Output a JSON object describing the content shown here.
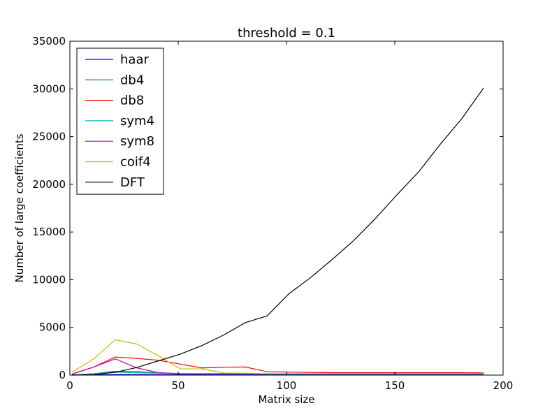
{
  "chart_data": {
    "type": "line",
    "title": "threshold = 0.1",
    "xlabel": "Matrix size",
    "ylabel": "Number of large coefficients",
    "xlim": [
      0,
      200
    ],
    "ylim": [
      0,
      35000
    ],
    "xticks": [
      0,
      50,
      100,
      150,
      200
    ],
    "yticks": [
      0,
      5000,
      10000,
      15000,
      20000,
      25000,
      30000,
      35000
    ],
    "grid": false,
    "legend_position": "top-left",
    "x": [
      1,
      11,
      21,
      31,
      41,
      51,
      61,
      71,
      81,
      91,
      101,
      111,
      121,
      131,
      141,
      151,
      161,
      171,
      181,
      191
    ],
    "series": [
      {
        "name": "haar",
        "color": "#0000ff",
        "values": [
          1,
          30,
          60,
          60,
          50,
          50,
          50,
          50,
          50,
          50,
          50,
          50,
          50,
          50,
          50,
          50,
          50,
          50,
          50,
          50
        ]
      },
      {
        "name": "db4",
        "color": "#008000",
        "values": [
          10,
          150,
          400,
          350,
          250,
          150,
          120,
          120,
          120,
          120,
          120,
          120,
          120,
          120,
          120,
          120,
          120,
          120,
          120,
          120
        ]
      },
      {
        "name": "db8",
        "color": "#ff0000",
        "values": [
          100,
          850,
          1900,
          1750,
          1550,
          1150,
          750,
          820,
          850,
          350,
          320,
          280,
          250,
          250,
          250,
          250,
          250,
          250,
          250,
          230
        ]
      },
      {
        "name": "sym4",
        "color": "#00bfbf",
        "values": [
          10,
          150,
          300,
          250,
          200,
          150,
          120,
          120,
          120,
          120,
          120,
          120,
          120,
          120,
          120,
          120,
          120,
          120,
          120,
          120
        ]
      },
      {
        "name": "sym8",
        "color": "#bf00bf",
        "values": [
          100,
          850,
          1700,
          750,
          250,
          150,
          150,
          150,
          150,
          150,
          150,
          150,
          150,
          150,
          150,
          150,
          150,
          150,
          150,
          150
        ]
      },
      {
        "name": "coif4",
        "color": "#bfbf00",
        "values": [
          300,
          1700,
          3700,
          3250,
          2000,
          650,
          650,
          220,
          200,
          150,
          150,
          150,
          150,
          150,
          150,
          150,
          150,
          150,
          150,
          150
        ]
      },
      {
        "name": "DFT",
        "color": "#000000",
        "values": [
          1,
          50,
          300,
          800,
          1500,
          2200,
          3100,
          4200,
          5500,
          6200,
          8500,
          10200,
          12100,
          14100,
          16400,
          18900,
          21300,
          24200,
          26900,
          30100
        ]
      }
    ]
  }
}
